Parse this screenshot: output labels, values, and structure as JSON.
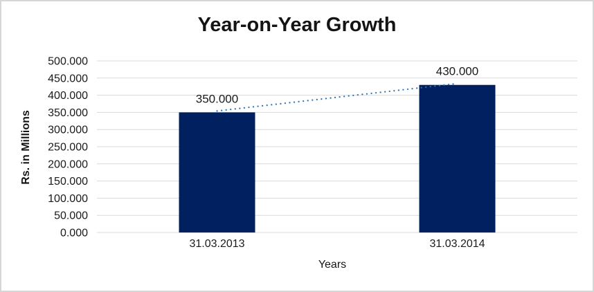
{
  "window": {
    "background": "#ffffff",
    "border_color": "#d6d6d6"
  },
  "chart_data": {
    "type": "bar",
    "title": "Year-on-Year Growth",
    "xlabel": "Years",
    "ylabel": "Rs. in Millions",
    "categories": [
      "31.03.2013",
      "31.03.2014"
    ],
    "values": [
      350,
      430
    ],
    "value_labels": [
      "350.000",
      "430.000"
    ],
    "ylim": [
      0,
      500
    ],
    "ytick_step": 50,
    "ytick_labels": [
      "0.000",
      "50.000",
      "100.000",
      "150.000",
      "200.000",
      "250.000",
      "300.000",
      "350.000",
      "400.000",
      "450.000",
      "500.000"
    ],
    "grid": true,
    "legend": "none",
    "bar_color": "#002060",
    "gridline_color": "#d9d9d9",
    "text_color": "#1a1a1a",
    "trendline": {
      "style": "dotted",
      "color": "#2e75b6",
      "from_value": 350,
      "to_value": 430
    }
  }
}
